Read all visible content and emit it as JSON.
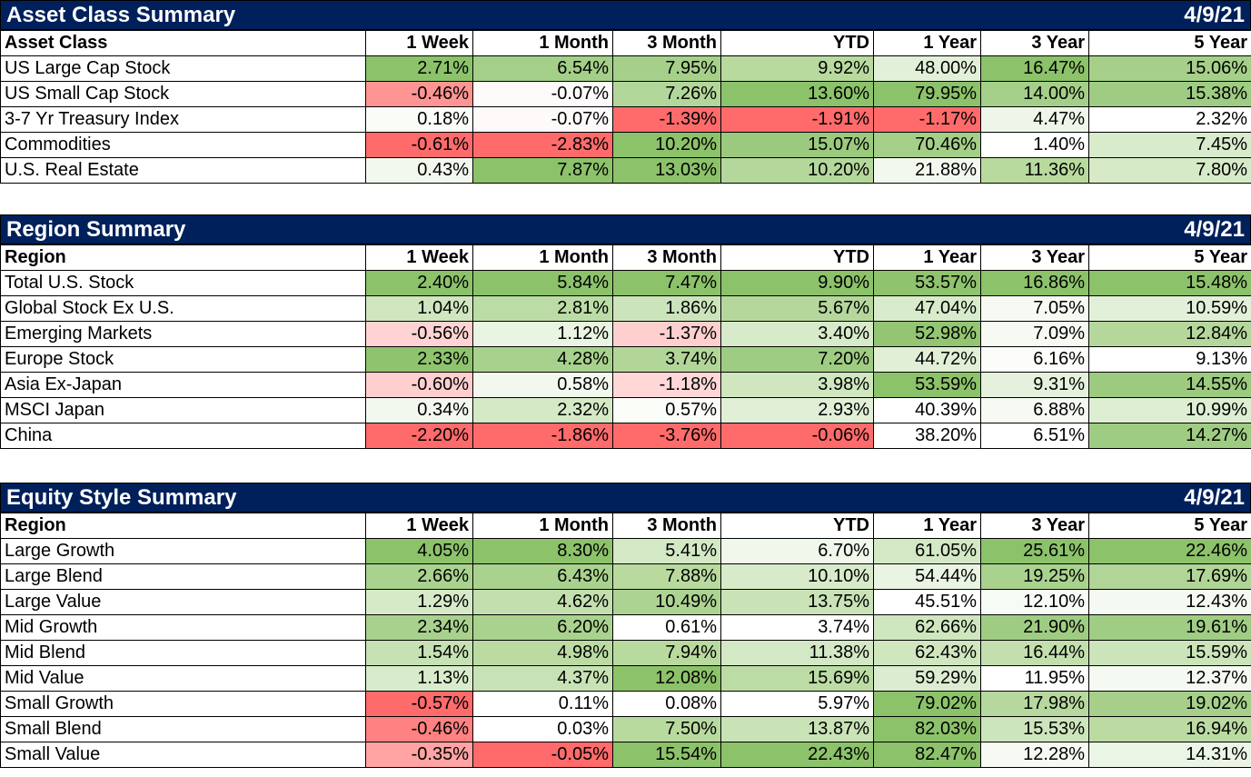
{
  "columns": [
    "1 Week",
    "1 Month",
    "3 Month",
    "YTD",
    "1 Year",
    "3 Year",
    "5 Year"
  ],
  "sections": [
    {
      "title": "Asset Class Summary",
      "date": "4/9/21",
      "first_header": "Asset Class",
      "rows": [
        {
          "label": "US Large Cap Stock",
          "values": [
            "2.71%",
            "6.54%",
            "7.95%",
            "9.92%",
            "48.00%",
            "16.47%",
            "15.06%"
          ]
        },
        {
          "label": "US Small Cap Stock",
          "values": [
            "-0.46%",
            "-0.07%",
            "7.26%",
            "13.60%",
            "79.95%",
            "14.00%",
            "15.38%"
          ]
        },
        {
          "label": "3-7 Yr Treasury Index",
          "values": [
            "0.18%",
            "-0.07%",
            "-1.39%",
            "-1.91%",
            "-1.17%",
            "4.47%",
            "2.32%"
          ]
        },
        {
          "label": "Commodities",
          "values": [
            "-0.61%",
            "-2.83%",
            "10.20%",
            "15.07%",
            "70.46%",
            "1.40%",
            "7.45%"
          ]
        },
        {
          "label": "U.S. Real Estate",
          "values": [
            "0.43%",
            "7.87%",
            "13.03%",
            "10.20%",
            "21.88%",
            "11.36%",
            "7.80%"
          ]
        }
      ],
      "colors": [
        [
          "#8cc26a",
          "#a4cf88",
          "#a6d08a",
          "#b9da9f",
          "#e3f0d9",
          "#8cc26a",
          "#a6d08a"
        ],
        [
          "#ff9593",
          "#fefafa",
          "#b3d79b",
          "#8cc26a",
          "#8cc26a",
          "#a4cf88",
          "#9fcc83"
        ],
        [
          "#fafcf8",
          "#fefafa",
          "#ff6b6b",
          "#ff6b6b",
          "#ff6b6b",
          "#eef6e9",
          "#ffffff"
        ],
        [
          "#ff6b6b",
          "#ff6b6b",
          "#8cc26a",
          "#9bca7e",
          "#a4cf88",
          "#ffffff",
          "#d8ebcb"
        ],
        [
          "#f2f8ee",
          "#8cc26a",
          "#8cc26a",
          "#b4d79b",
          "#f3f8ef",
          "#b9da9f",
          "#d6eac8"
        ]
      ]
    },
    {
      "title": "Region Summary",
      "date": "4/9/21",
      "first_header": "Region",
      "rows": [
        {
          "label": "Total U.S. Stock",
          "values": [
            "2.40%",
            "5.84%",
            "7.47%",
            "9.90%",
            "53.57%",
            "16.86%",
            "15.48%"
          ]
        },
        {
          "label": "Global Stock Ex U.S.",
          "values": [
            "1.04%",
            "2.81%",
            "1.86%",
            "5.67%",
            "47.04%",
            "7.05%",
            "10.59%"
          ]
        },
        {
          "label": "Emerging Markets",
          "values": [
            "-0.56%",
            "1.12%",
            "-1.37%",
            "3.40%",
            "52.98%",
            "7.09%",
            "12.84%"
          ]
        },
        {
          "label": "Europe Stock",
          "values": [
            "2.33%",
            "4.28%",
            "3.74%",
            "7.20%",
            "44.72%",
            "6.16%",
            "9.13%"
          ]
        },
        {
          "label": "Asia Ex-Japan",
          "values": [
            "-0.60%",
            "0.58%",
            "-1.18%",
            "3.98%",
            "53.59%",
            "9.31%",
            "14.55%"
          ]
        },
        {
          "label": "MSCI Japan",
          "values": [
            "0.34%",
            "2.32%",
            "0.57%",
            "2.93%",
            "40.39%",
            "6.88%",
            "10.99%"
          ]
        },
        {
          "label": "China",
          "values": [
            "-2.20%",
            "-1.86%",
            "-3.76%",
            "-0.06%",
            "38.20%",
            "6.51%",
            "14.27%"
          ]
        }
      ],
      "colors": [
        [
          "#8cc26a",
          "#8cc26a",
          "#8cc26a",
          "#8cc26a",
          "#8fc36d",
          "#8cc26a",
          "#8cc26a"
        ],
        [
          "#cfe6bf",
          "#bcdca5",
          "#cce4bc",
          "#b5d79c",
          "#d8ebcb",
          "#f6faf3",
          "#e3f0d9"
        ],
        [
          "#ffd3d3",
          "#e9f4e2",
          "#ffcfcf",
          "#d7eac9",
          "#93c572",
          "#f6faf3",
          "#b5d79c"
        ],
        [
          "#8fc36d",
          "#a7d18c",
          "#b2d698",
          "#9fcc83",
          "#e2efd7",
          "#fcfdfb",
          "#ffffff"
        ],
        [
          "#ffcfcf",
          "#f3f8ef",
          "#ffd7d7",
          "#cfe6bf",
          "#8cc26a",
          "#e6f1dd",
          "#9ccb80"
        ],
        [
          "#f3f8ef",
          "#d5e9c7",
          "#fbfdf9",
          "#e2efd7",
          "#ffffff",
          "#f6faf3",
          "#ddeed2"
        ],
        [
          "#ff6b6b",
          "#ff6b6b",
          "#ff6b6b",
          "#ff6b6b",
          "#ffffff",
          "#ffffff",
          "#9fcc83"
        ]
      ]
    },
    {
      "title": "Equity Style Summary",
      "date": "4/9/21",
      "first_header": "Region",
      "rows": [
        {
          "label": "Large Growth",
          "values": [
            "4.05%",
            "8.30%",
            "5.41%",
            "6.70%",
            "61.05%",
            "25.61%",
            "22.46%"
          ]
        },
        {
          "label": "Large Blend",
          "values": [
            "2.66%",
            "6.43%",
            "7.88%",
            "10.10%",
            "54.44%",
            "19.25%",
            "17.69%"
          ]
        },
        {
          "label": "Large Value",
          "values": [
            "1.29%",
            "4.62%",
            "10.49%",
            "13.75%",
            "45.51%",
            "12.10%",
            "12.43%"
          ]
        },
        {
          "label": "Mid Growth",
          "values": [
            "2.34%",
            "6.20%",
            "0.61%",
            "3.74%",
            "62.66%",
            "21.90%",
            "19.61%"
          ]
        },
        {
          "label": "Mid Blend",
          "values": [
            "1.54%",
            "4.98%",
            "7.94%",
            "11.38%",
            "62.43%",
            "16.44%",
            "15.59%"
          ]
        },
        {
          "label": "Mid Value",
          "values": [
            "1.13%",
            "4.37%",
            "12.08%",
            "15.69%",
            "59.29%",
            "11.95%",
            "12.37%"
          ]
        },
        {
          "label": "Small Growth",
          "values": [
            "-0.57%",
            "0.11%",
            "0.08%",
            "5.97%",
            "79.02%",
            "17.98%",
            "19.02%"
          ]
        },
        {
          "label": "Small Blend",
          "values": [
            "-0.46%",
            "0.03%",
            "7.50%",
            "13.87%",
            "82.03%",
            "15.53%",
            "16.94%"
          ]
        },
        {
          "label": "Small Value",
          "values": [
            "-0.35%",
            "-0.05%",
            "15.54%",
            "22.43%",
            "82.47%",
            "12.28%",
            "14.31%"
          ]
        }
      ],
      "colors": [
        [
          "#8cc26a",
          "#8cc26a",
          "#d3e8c5",
          "#f0f7eb",
          "#d3e8c5",
          "#8cc26a",
          "#8cc26a"
        ],
        [
          "#a9d28e",
          "#a9d28e",
          "#b9da9f",
          "#d7eac9",
          "#e9f4e2",
          "#a9d28e",
          "#b0d596"
        ],
        [
          "#d6eac8",
          "#c2dfad",
          "#add393",
          "#c9e3b7",
          "#ffffff",
          "#f7fbf5",
          "#f4f9f1"
        ],
        [
          "#a8d18d",
          "#a9d28e",
          "#ffffff",
          "#ffffff",
          "#cfe6bf",
          "#9fcc83",
          "#a0cd84"
        ],
        [
          "#c6e1b3",
          "#bbdba3",
          "#b9da9f",
          "#d3e8c5",
          "#cfe6bf",
          "#c2dfad",
          "#cbe4ba"
        ],
        [
          "#d8ebcb",
          "#c7e2b4",
          "#8cc26a",
          "#bcdca5",
          "#dcecd0",
          "#ffffff",
          "#f4f9f1"
        ],
        [
          "#ff6b6b",
          "#ffffff",
          "#ffffff",
          "#ffffff",
          "#8cc26a",
          "#b6d89e",
          "#a6d08a"
        ],
        [
          "#ff8282",
          "#ffffff",
          "#b9da9f",
          "#c9e3b7",
          "#8cc26a",
          "#cde5bc",
          "#bbdba3"
        ],
        [
          "#ffa3a3",
          "#ff6b6b",
          "#8cc26a",
          "#8cc26a",
          "#8cc26a",
          "#f6faf3",
          "#ebf5e5"
        ]
      ]
    }
  ]
}
